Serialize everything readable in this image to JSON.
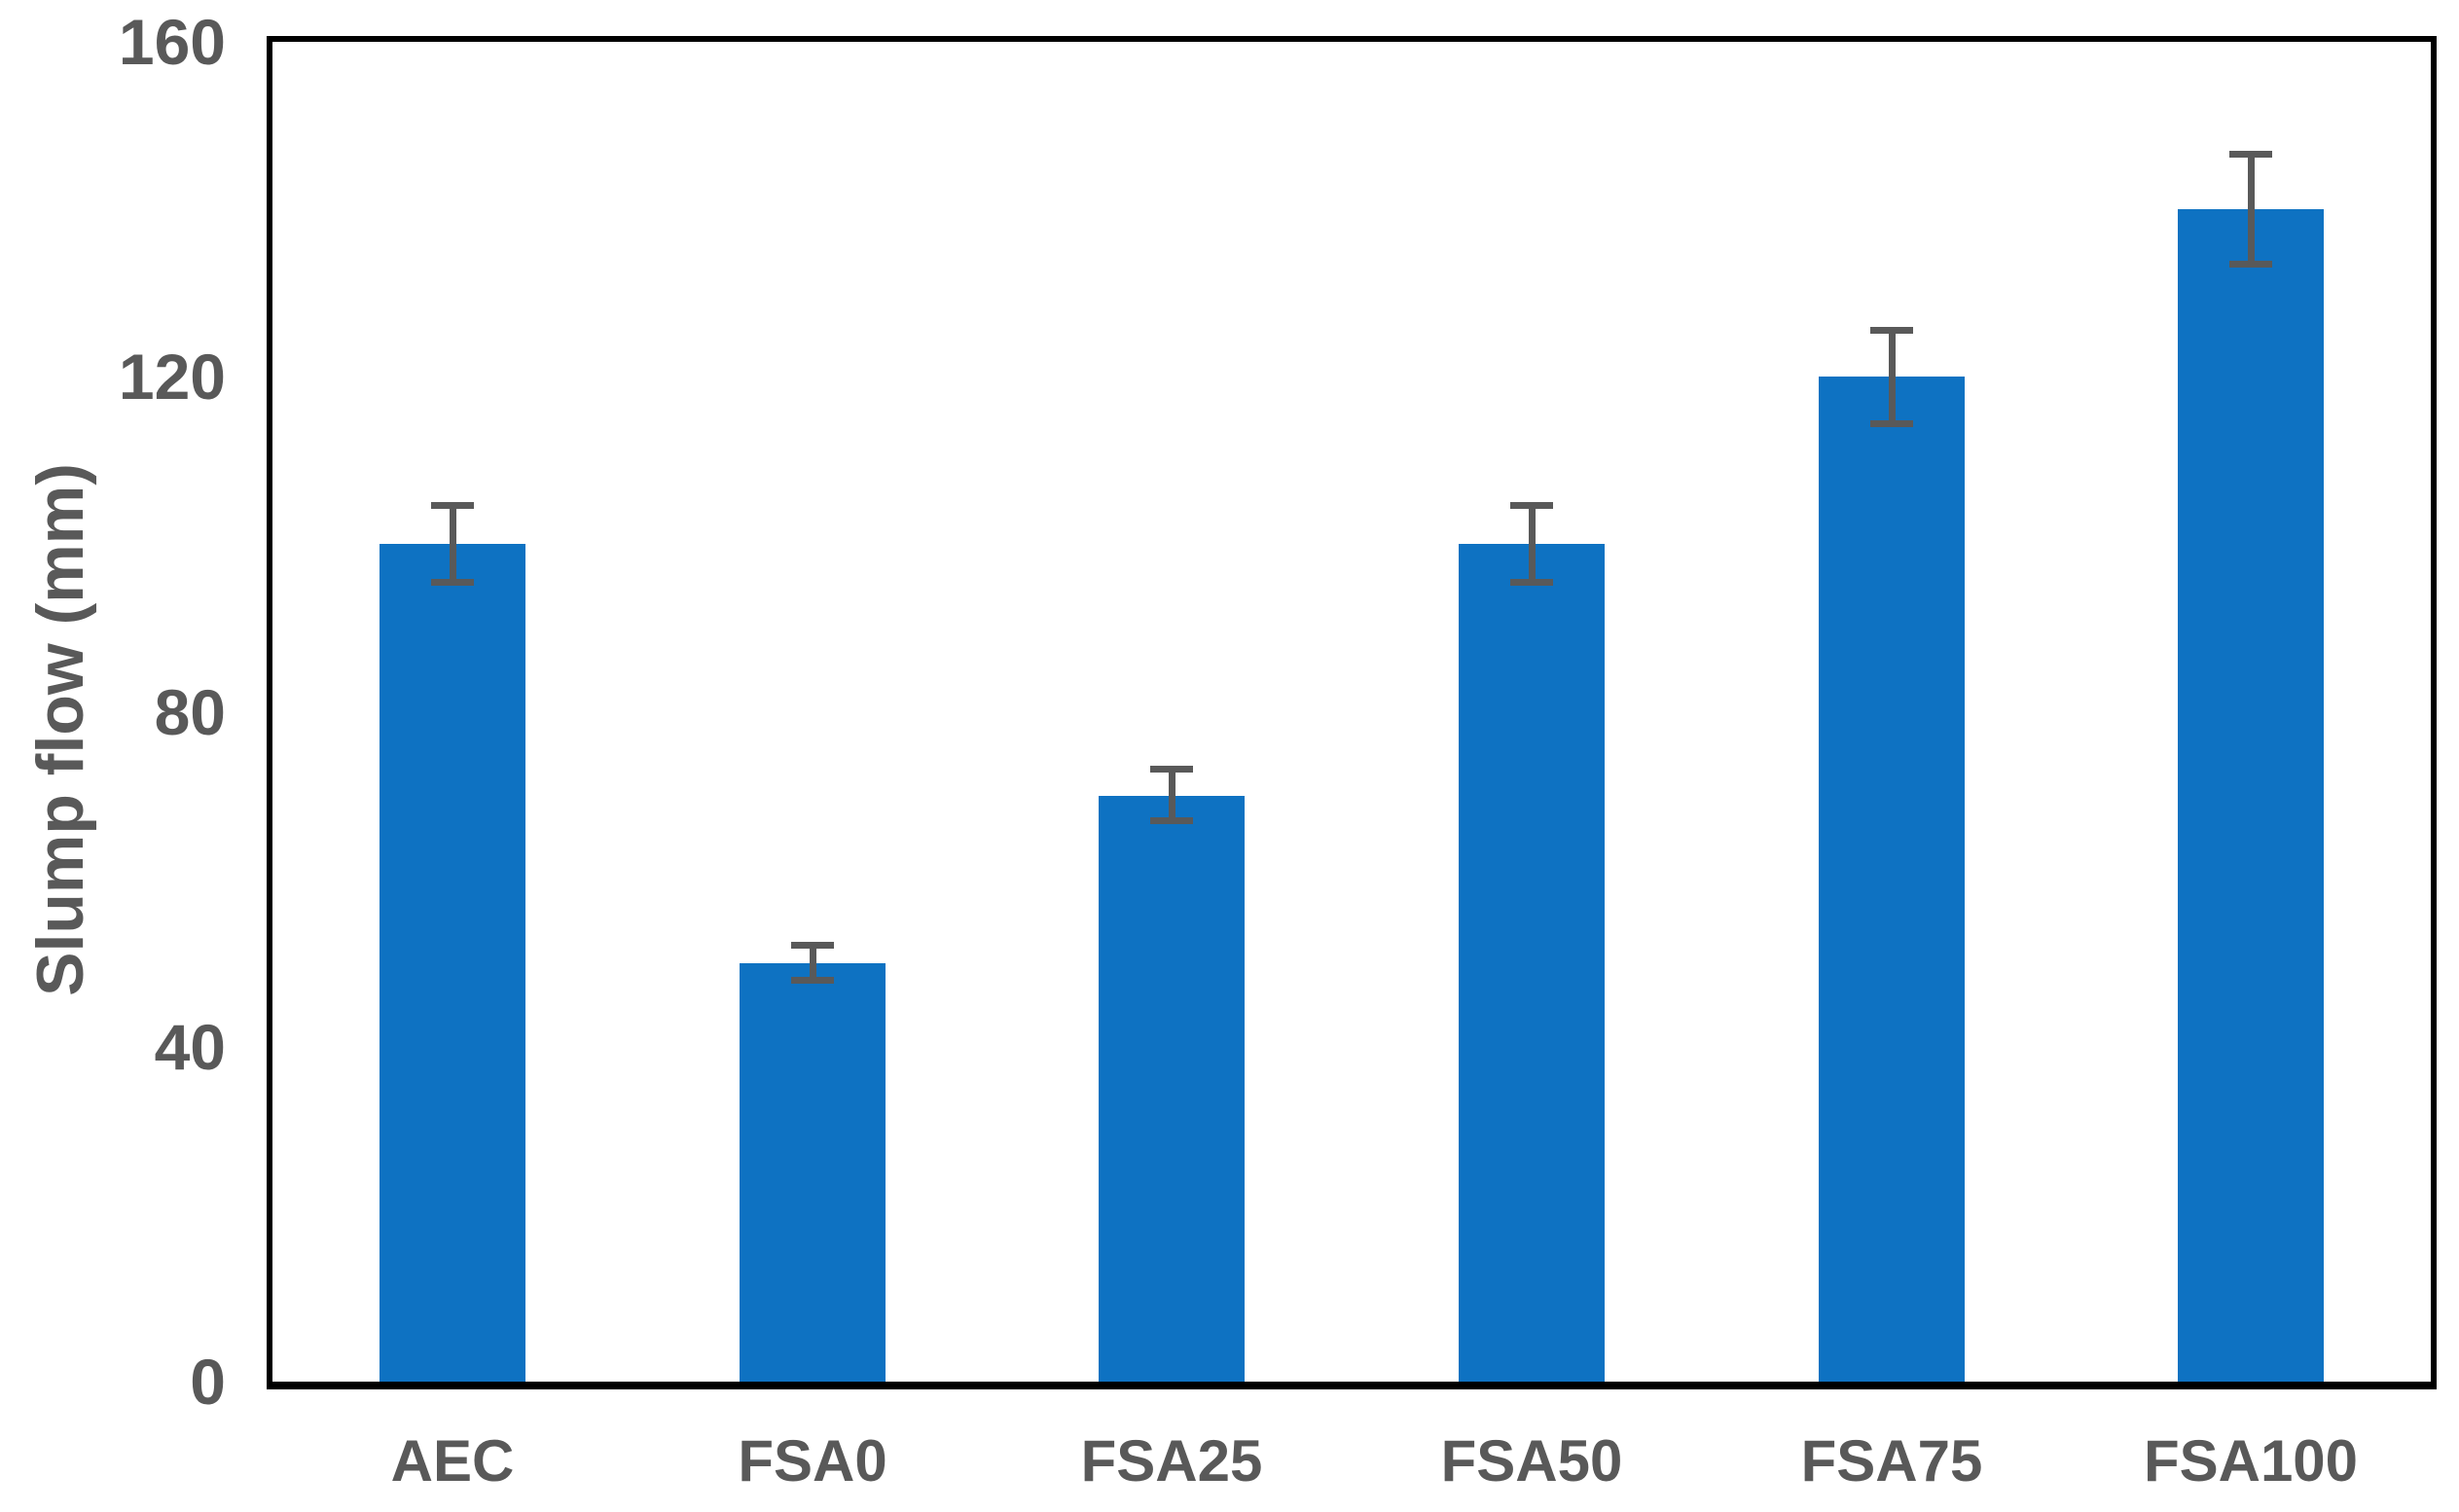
{
  "chart_data": {
    "type": "bar",
    "title": "",
    "categories": [
      "AEC",
      "FSA0",
      "FSA25",
      "FSA50",
      "FSA75",
      "FSA100"
    ],
    "values": [
      100,
      50,
      70,
      100,
      120,
      140
    ],
    "error_bars": [
      5,
      2.5,
      3.5,
      5,
      6,
      7
    ],
    "xlabel": "",
    "ylabel": "Slump flow (mm)",
    "ylim": [
      0,
      160
    ],
    "yticks": [
      0,
      40,
      80,
      120,
      160
    ],
    "grid": false,
    "legend": "none",
    "colors": {
      "bar": "#0e72c2",
      "error_bar": "#595959",
      "axis_text": "#595959",
      "axis_line": "#000000",
      "background": "#ffffff"
    }
  }
}
